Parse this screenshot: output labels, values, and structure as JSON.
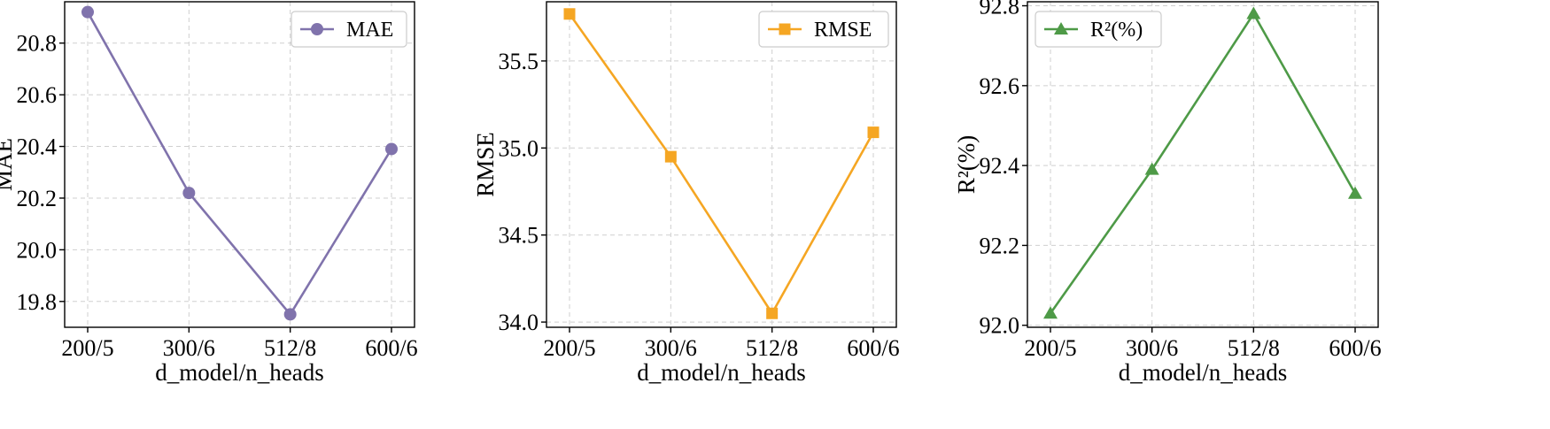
{
  "chart_data": [
    {
      "type": "line",
      "categories": [
        "200/5",
        "300/6",
        "512/8",
        "600/6"
      ],
      "series": [
        {
          "name": "MAE",
          "values": [
            20.92,
            20.22,
            19.75,
            20.39
          ],
          "color": "#8073ac",
          "marker": "circle"
        }
      ],
      "xlabel": "d_model/n_heads",
      "ylabel": "MAE",
      "yticks": [
        19.8,
        20.0,
        20.2,
        20.4,
        20.6,
        20.8
      ],
      "ytick_labels": [
        "19.8",
        "20.0",
        "20.2",
        "20.4",
        "20.6",
        "20.8"
      ],
      "ylim": [
        19.7,
        20.96
      ],
      "legend": "top-right",
      "grid": true
    },
    {
      "type": "line",
      "categories": [
        "200/5",
        "300/6",
        "512/8",
        "600/6"
      ],
      "series": [
        {
          "name": "RMSE",
          "values": [
            35.77,
            34.95,
            34.05,
            35.09
          ],
          "color": "#f5a623",
          "marker": "square"
        }
      ],
      "xlabel": "d_model/n_heads",
      "ylabel": "RMSE",
      "yticks": [
        34.0,
        34.5,
        35.0,
        35.5
      ],
      "ytick_labels": [
        "34.0",
        "34.5",
        "35.0",
        "35.5"
      ],
      "ylim": [
        33.97,
        35.84
      ],
      "legend": "top-right",
      "grid": true
    },
    {
      "type": "line",
      "categories": [
        "200/5",
        "300/6",
        "512/8",
        "600/6"
      ],
      "series": [
        {
          "name": "R²(%)",
          "values": [
            92.03,
            92.39,
            92.78,
            92.33
          ],
          "color": "#4e9a47",
          "marker": "triangle"
        }
      ],
      "xlabel": "d_model/n_heads",
      "ylabel": "R²(%)",
      "yticks": [
        92.0,
        92.2,
        92.4,
        92.6,
        92.8
      ],
      "ytick_labels": [
        "92.0",
        "92.2",
        "92.4",
        "92.6",
        "92.8"
      ],
      "ylim": [
        91.995,
        92.81
      ],
      "legend": "top-left",
      "grid": true
    }
  ]
}
